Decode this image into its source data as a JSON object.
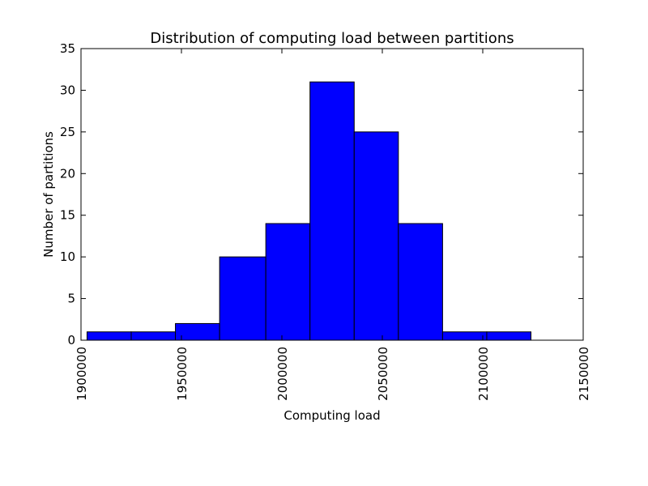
{
  "chart_data": {
    "type": "bar",
    "title": "Distribution of computing load between partitions",
    "xlabel": "Computing load",
    "ylabel": "Number of partitions",
    "xlim": [
      1900000,
      2150000
    ],
    "ylim": [
      0,
      35
    ],
    "xticks": [
      "1900000",
      "1950000",
      "2000000",
      "2050000",
      "2100000",
      "2150000"
    ],
    "xtick_values": [
      1900000,
      1950000,
      2000000,
      2050000,
      2100000,
      2150000
    ],
    "yticks": [
      "0",
      "5",
      "10",
      "15",
      "20",
      "25",
      "30",
      "35"
    ],
    "ytick_values": [
      0,
      5,
      10,
      15,
      20,
      25,
      30,
      35
    ],
    "bins": [
      [
        1903000,
        1925000
      ],
      [
        1925000,
        1947000
      ],
      [
        1947000,
        1969000
      ],
      [
        1969000,
        1992000
      ],
      [
        1992000,
        2014000
      ],
      [
        2014000,
        2036000
      ],
      [
        2036000,
        2058000
      ],
      [
        2058000,
        2080000
      ],
      [
        2080000,
        2102000
      ],
      [
        2102000,
        2124000
      ]
    ],
    "values": [
      1,
      1,
      2,
      10,
      14,
      31,
      25,
      14,
      1,
      1
    ],
    "bar_color": "#0000ff",
    "edge_color": "#000000",
    "grid": false
  }
}
